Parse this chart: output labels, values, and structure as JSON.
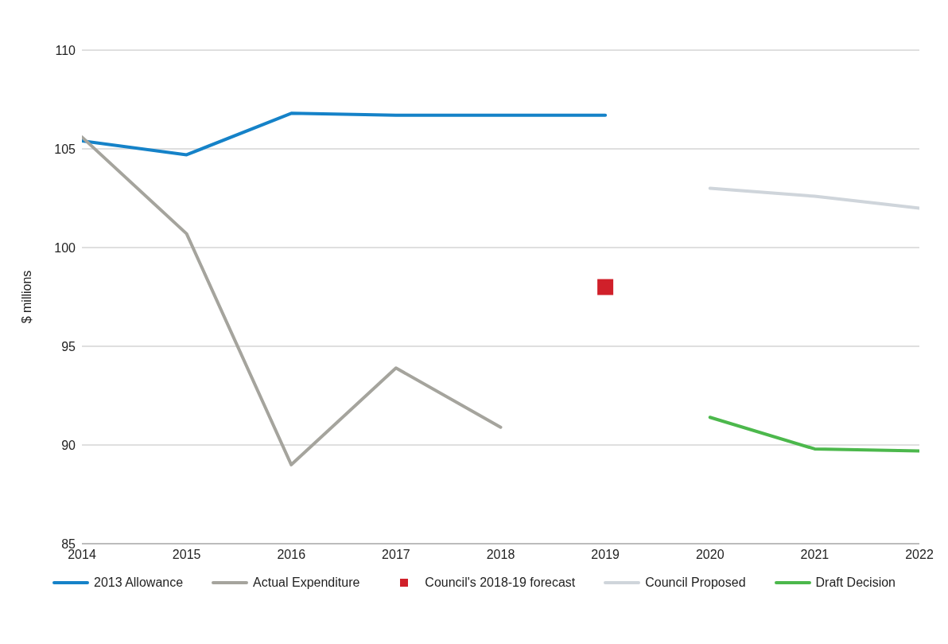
{
  "chart_data": {
    "type": "line",
    "ylabel": "$ millions",
    "x": [
      2014,
      2015,
      2016,
      2017,
      2018,
      2019,
      2020,
      2021,
      2022
    ],
    "series": [
      {
        "name": "2013 Allowance",
        "color": "#1582c8",
        "values": [
          105.4,
          104.7,
          106.8,
          106.7,
          106.7,
          106.7,
          null,
          null,
          null
        ]
      },
      {
        "name": "Actual Expenditure",
        "color": "#a5a49d",
        "values": [
          105.6,
          100.7,
          89.0,
          93.9,
          90.9,
          null,
          null,
          null,
          null
        ]
      },
      {
        "name": "Council's 2018-19 forecast",
        "type": "scatter",
        "marker": "square",
        "color": "#d0202a",
        "x": [
          2019
        ],
        "values": [
          98.0
        ]
      },
      {
        "name": "Council Proposed",
        "color": "#cfd5db",
        "values": [
          null,
          null,
          null,
          null,
          null,
          null,
          103.0,
          102.6,
          102.0
        ]
      },
      {
        "name": "Draft Decision",
        "color": "#4cb84c",
        "values": [
          null,
          null,
          null,
          null,
          null,
          null,
          91.4,
          89.8,
          89.7
        ]
      }
    ],
    "xlim": [
      2014,
      2022
    ],
    "xticks": [
      2014,
      2015,
      2016,
      2017,
      2018,
      2019,
      2020,
      2021,
      2022
    ],
    "ylim": [
      85,
      110
    ],
    "yticks": [
      85,
      90,
      95,
      100,
      105,
      110
    ],
    "grid": "y",
    "legend": "bottom",
    "marker": "none",
    "line_style": "solid"
  }
}
